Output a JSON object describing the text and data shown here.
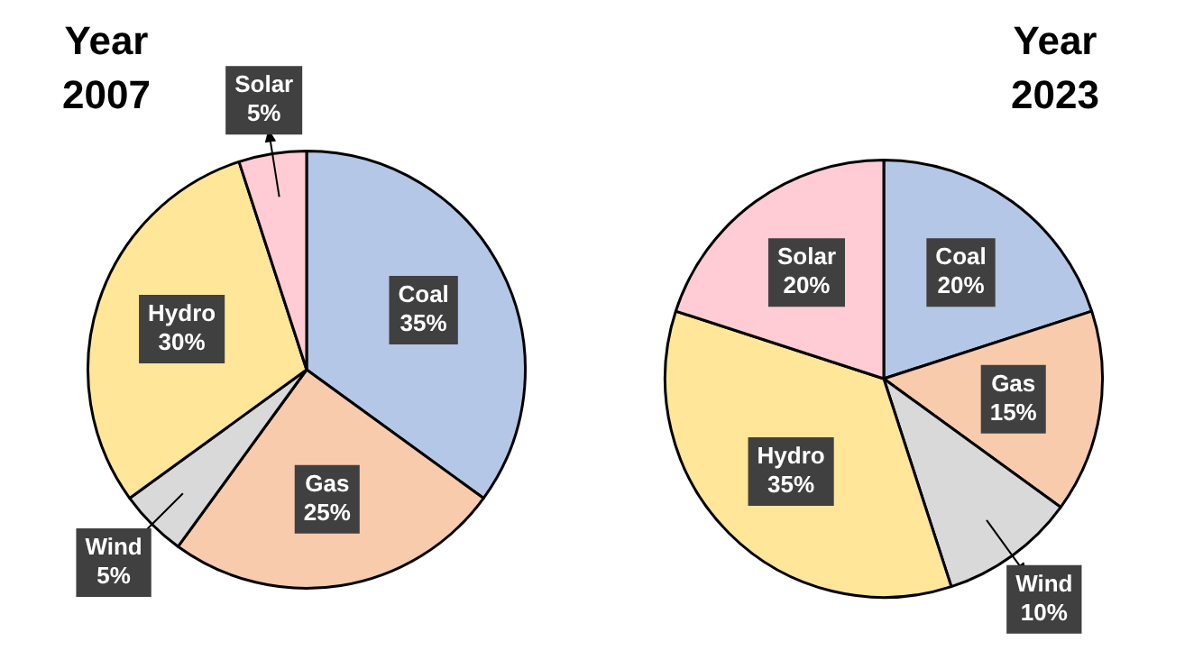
{
  "chart_data": [
    {
      "type": "pie",
      "title": "Year 2007",
      "categories": [
        "Coal",
        "Gas",
        "Wind",
        "Hydro",
        "Solar"
      ],
      "values": [
        35,
        25,
        5,
        30,
        5
      ],
      "value_labels": [
        "35%",
        "25%",
        "5%",
        "30%",
        "5%"
      ],
      "colors": [
        "#b4c7e7",
        "#f8cbad",
        "#d9d9d9",
        "#ffe699",
        "#ffccd5"
      ]
    },
    {
      "type": "pie",
      "title": "Year 2023",
      "categories": [
        "Coal",
        "Gas",
        "Wind",
        "Hydro",
        "Solar"
      ],
      "values": [
        20,
        15,
        10,
        35,
        20
      ],
      "value_labels": [
        "20%",
        "15%",
        "10%",
        "35%",
        "20%"
      ],
      "colors": [
        "#b4c7e7",
        "#f8cbad",
        "#d9d9d9",
        "#ffe699",
        "#ffccd5"
      ]
    }
  ]
}
